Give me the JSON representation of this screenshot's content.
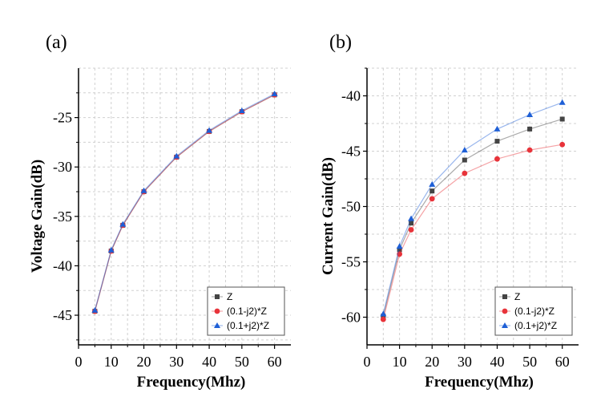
{
  "colors": {
    "Z": "#444444",
    "(0.1-j2)*Z": "#e8333a",
    "(0.1+j2)*Z": "#1e5fd6",
    "grid": "#d0d0d0",
    "axis": "#000000"
  },
  "chart_data": [
    {
      "type": "line",
      "panel_label": "(a)",
      "xlabel": "Frequency(Mhz)",
      "ylabel": "Voltage Gain(dB)",
      "xlim": [
        0,
        65
      ],
      "ylim": [
        -48,
        -20
      ],
      "xticks": [
        0,
        10,
        20,
        30,
        40,
        50,
        60
      ],
      "yticks": [
        -45,
        -40,
        -35,
        -30,
        -25
      ],
      "grid": true,
      "legend_position": "bottom-right",
      "x": [
        5,
        10,
        13.56,
        20,
        30,
        40,
        50,
        60
      ],
      "series": [
        {
          "name": "Z",
          "marker": "square",
          "values": [
            -44.6,
            -38.5,
            -35.9,
            -32.5,
            -29.0,
            -26.4,
            -24.4,
            -22.7
          ]
        },
        {
          "name": "(0.1-j2)*Z",
          "marker": "circle",
          "values": [
            -44.6,
            -38.5,
            -35.9,
            -32.5,
            -29.0,
            -26.4,
            -24.4,
            -22.7
          ]
        },
        {
          "name": "(0.1+j2)*Z",
          "marker": "triangle",
          "values": [
            -44.5,
            -38.4,
            -35.8,
            -32.4,
            -28.9,
            -26.3,
            -24.3,
            -22.6
          ]
        }
      ]
    },
    {
      "type": "line",
      "panel_label": "(b)",
      "xlabel": "Frequency(Mhz)",
      "ylabel": "Current Gain(dB)",
      "xlim": [
        0,
        65
      ],
      "ylim": [
        -62.5,
        -37.5
      ],
      "xticks": [
        0,
        10,
        20,
        30,
        40,
        50,
        60
      ],
      "yticks": [
        -60,
        -55,
        -50,
        -45,
        -40
      ],
      "grid": true,
      "legend_position": "bottom-right",
      "x": [
        5,
        10,
        13.56,
        20,
        30,
        40,
        50,
        60
      ],
      "series": [
        {
          "name": "Z",
          "marker": "square",
          "values": [
            -59.9,
            -53.9,
            -51.5,
            -48.6,
            -45.8,
            -44.1,
            -43.0,
            -42.1
          ]
        },
        {
          "name": "(0.1-j2)*Z",
          "marker": "circle",
          "values": [
            -60.2,
            -54.3,
            -52.1,
            -49.3,
            -47.0,
            -45.7,
            -44.9,
            -44.4
          ]
        },
        {
          "name": "(0.1+j2)*Z",
          "marker": "triangle",
          "values": [
            -59.7,
            -53.6,
            -51.1,
            -48.0,
            -44.9,
            -43.0,
            -41.7,
            -40.6
          ]
        }
      ]
    }
  ]
}
